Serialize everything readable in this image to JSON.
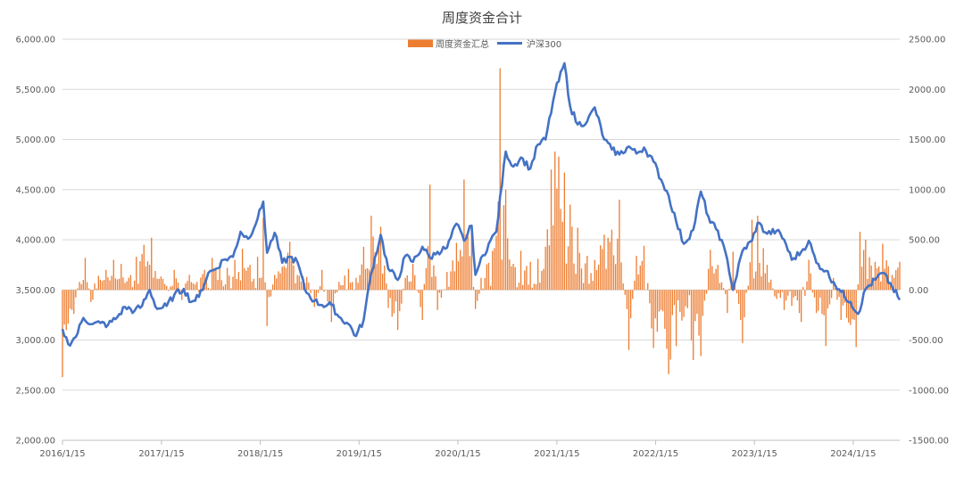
{
  "chart_data": {
    "type": "bar+line",
    "title": "周度资金合计",
    "legend": [
      "周度资金汇总",
      "沪深300"
    ],
    "legend_position": "top",
    "x_tick_labels": [
      "2016/1/15",
      "2017/1/15",
      "2018/1/15",
      "2019/1/15",
      "2020/1/15",
      "2021/1/15",
      "2022/1/15",
      "2023/1/15",
      "2024/1/15"
    ],
    "y_left": {
      "ticks": [
        "2,000.00",
        "2,500.00",
        "3,000.00",
        "3,500.00",
        "4,000.00",
        "4,500.00",
        "5,000.00",
        "5,500.00",
        "6,000.00"
      ],
      "min": 2000,
      "max": 6000
    },
    "y_right": {
      "ticks": [
        "-1500.00",
        "-1000.00",
        "-500.00",
        "0.00",
        "500.00",
        "1000.00",
        "1500.00",
        "2000.00",
        "2500.00"
      ],
      "min": -1500,
      "max": 2500
    },
    "grid": "horizontal",
    "colors": {
      "bar": "#ED7D31",
      "line": "#4472C4",
      "grid": "#D9D9D9",
      "axis": "#BFBFBF"
    },
    "x_range": [
      "2016-01-15",
      "2024-07-05"
    ],
    "line_series": {
      "name": "沪深300",
      "axis": "left",
      "points": [
        [
          "2016-01-15",
          3110
        ],
        [
          "2016-02-05",
          2960
        ],
        [
          "2016-03-04",
          3030
        ],
        [
          "2016-04-01",
          3220
        ],
        [
          "2016-05-06",
          3160
        ],
        [
          "2016-06-03",
          3170
        ],
        [
          "2016-07-01",
          3150
        ],
        [
          "2016-08-05",
          3230
        ],
        [
          "2016-09-02",
          3330
        ],
        [
          "2016-10-07",
          3290
        ],
        [
          "2016-11-04",
          3340
        ],
        [
          "2016-12-02",
          3500
        ],
        [
          "2016-12-30",
          3310
        ],
        [
          "2017-02-03",
          3340
        ],
        [
          "2017-03-03",
          3450
        ],
        [
          "2017-04-07",
          3510
        ],
        [
          "2017-05-05",
          3380
        ],
        [
          "2017-06-02",
          3430
        ],
        [
          "2017-07-07",
          3670
        ],
        [
          "2017-08-04",
          3710
        ],
        [
          "2017-09-01",
          3800
        ],
        [
          "2017-10-06",
          3830
        ],
        [
          "2017-11-03",
          4080
        ],
        [
          "2017-12-01",
          4010
        ],
        [
          "2018-01-05",
          4210
        ],
        [
          "2018-01-26",
          4380
        ],
        [
          "2018-02-09",
          3870
        ],
        [
          "2018-03-09",
          4070
        ],
        [
          "2018-04-06",
          3770
        ],
        [
          "2018-05-04",
          3830
        ],
        [
          "2018-06-01",
          3780
        ],
        [
          "2018-06-29",
          3500
        ],
        [
          "2018-08-03",
          3390
        ],
        [
          "2018-08-31",
          3350
        ],
        [
          "2018-10-05",
          3350
        ],
        [
          "2018-11-02",
          3230
        ],
        [
          "2018-12-07",
          3160
        ],
        [
          "2019-01-04",
          3040
        ],
        [
          "2019-02-01",
          3200
        ],
        [
          "2019-03-01",
          3670
        ],
        [
          "2019-04-05",
          4050
        ],
        [
          "2019-05-03",
          3710
        ],
        [
          "2019-06-07",
          3600
        ],
        [
          "2019-07-05",
          3840
        ],
        [
          "2019-08-02",
          3780
        ],
        [
          "2019-09-06",
          3930
        ],
        [
          "2019-10-04",
          3820
        ],
        [
          "2019-11-01",
          3880
        ],
        [
          "2019-12-06",
          3920
        ],
        [
          "2020-01-10",
          4160
        ],
        [
          "2020-02-07",
          3990
        ],
        [
          "2020-03-06",
          4140
        ],
        [
          "2020-03-20",
          3650
        ],
        [
          "2020-04-03",
          3750
        ],
        [
          "2020-05-08",
          3960
        ],
        [
          "2020-06-05",
          4080
        ],
        [
          "2020-07-10",
          4880
        ],
        [
          "2020-08-07",
          4730
        ],
        [
          "2020-09-04",
          4820
        ],
        [
          "2020-10-09",
          4710
        ],
        [
          "2020-11-06",
          4950
        ],
        [
          "2020-12-04",
          5000
        ],
        [
          "2021-01-08",
          5470
        ],
        [
          "2021-02-12",
          5760
        ],
        [
          "2021-03-05",
          5330
        ],
        [
          "2021-04-02",
          5150
        ],
        [
          "2021-05-07",
          5180
        ],
        [
          "2021-06-04",
          5320
        ],
        [
          "2021-07-09",
          5000
        ],
        [
          "2021-08-06",
          4900
        ],
        [
          "2021-09-03",
          4850
        ],
        [
          "2021-10-08",
          4930
        ],
        [
          "2021-11-05",
          4860
        ],
        [
          "2021-12-03",
          4920
        ],
        [
          "2022-01-07",
          4780
        ],
        [
          "2022-02-04",
          4600
        ],
        [
          "2022-03-04",
          4440
        ],
        [
          "2022-04-01",
          4180
        ],
        [
          "2022-04-29",
          3960
        ],
        [
          "2022-06-03",
          4100
        ],
        [
          "2022-07-01",
          4480
        ],
        [
          "2022-08-05",
          4170
        ],
        [
          "2022-09-02",
          4090
        ],
        [
          "2022-10-07",
          3800
        ],
        [
          "2022-10-28",
          3500
        ],
        [
          "2022-12-02",
          3890
        ],
        [
          "2023-01-06",
          3990
        ],
        [
          "2023-01-27",
          4170
        ],
        [
          "2023-03-03",
          4060
        ],
        [
          "2023-04-07",
          4090
        ],
        [
          "2023-05-05",
          4000
        ],
        [
          "2023-06-02",
          3800
        ],
        [
          "2023-07-07",
          3880
        ],
        [
          "2023-08-04",
          3990
        ],
        [
          "2023-09-01",
          3770
        ],
        [
          "2023-10-06",
          3690
        ],
        [
          "2023-11-03",
          3580
        ],
        [
          "2023-12-01",
          3480
        ],
        [
          "2024-01-05",
          3380
        ],
        [
          "2024-02-02",
          3260
        ],
        [
          "2024-03-01",
          3510
        ],
        [
          "2024-04-05",
          3600
        ],
        [
          "2024-05-03",
          3670
        ],
        [
          "2024-06-07",
          3530
        ],
        [
          "2024-07-05",
          3400
        ]
      ]
    },
    "bar_series": {
      "name": "周度资金汇总",
      "axis": "right",
      "points": [
        [
          "2016-01-15",
          -870
        ],
        [
          "2016-01-29",
          -400
        ],
        [
          "2016-02-26",
          -240
        ],
        [
          "2016-03-18",
          80
        ],
        [
          "2016-04-08",
          320
        ],
        [
          "2016-04-29",
          -120
        ],
        [
          "2016-05-27",
          140
        ],
        [
          "2016-06-24",
          200
        ],
        [
          "2016-07-22",
          300
        ],
        [
          "2016-08-19",
          260
        ],
        [
          "2016-09-16",
          120
        ],
        [
          "2016-10-14",
          330
        ],
        [
          "2016-11-11",
          450
        ],
        [
          "2016-12-09",
          520
        ],
        [
          "2017-01-06",
          110
        ],
        [
          "2017-02-03",
          40
        ],
        [
          "2017-03-03",
          200
        ],
        [
          "2017-03-31",
          -100
        ],
        [
          "2017-04-28",
          150
        ],
        [
          "2017-05-26",
          80
        ],
        [
          "2017-06-23",
          200
        ],
        [
          "2017-07-21",
          320
        ],
        [
          "2017-08-18",
          270
        ],
        [
          "2017-09-15",
          220
        ],
        [
          "2017-10-13",
          300
        ],
        [
          "2017-11-10",
          410
        ],
        [
          "2017-12-08",
          250
        ],
        [
          "2018-01-05",
          330
        ],
        [
          "2018-01-26",
          720
        ],
        [
          "2018-02-09",
          -360
        ],
        [
          "2018-03-09",
          150
        ],
        [
          "2018-04-06",
          230
        ],
        [
          "2018-05-04",
          480
        ],
        [
          "2018-06-01",
          150
        ],
        [
          "2018-07-06",
          130
        ],
        [
          "2018-08-03",
          -170
        ],
        [
          "2018-08-31",
          200
        ],
        [
          "2018-10-05",
          -320
        ],
        [
          "2018-11-02",
          80
        ],
        [
          "2018-12-07",
          210
        ],
        [
          "2019-01-04",
          120
        ],
        [
          "2019-02-01",
          430
        ],
        [
          "2019-03-01",
          740
        ],
        [
          "2019-04-05",
          630
        ],
        [
          "2019-05-03",
          -180
        ],
        [
          "2019-06-07",
          -400
        ],
        [
          "2019-07-05",
          120
        ],
        [
          "2019-08-02",
          260
        ],
        [
          "2019-09-06",
          -300
        ],
        [
          "2019-10-04",
          1050
        ],
        [
          "2019-11-01",
          -200
        ],
        [
          "2019-12-06",
          180
        ],
        [
          "2020-01-10",
          470
        ],
        [
          "2020-02-07",
          1100
        ],
        [
          "2020-03-06",
          580
        ],
        [
          "2020-03-20",
          -190
        ],
        [
          "2020-04-10",
          120
        ],
        [
          "2020-05-08",
          270
        ],
        [
          "2020-06-05",
          540
        ],
        [
          "2020-06-19",
          2210
        ],
        [
          "2020-07-10",
          1000
        ],
        [
          "2020-08-07",
          260
        ],
        [
          "2020-09-04",
          390
        ],
        [
          "2020-10-09",
          280
        ],
        [
          "2020-11-06",
          310
        ],
        [
          "2020-12-04",
          430
        ],
        [
          "2020-12-25",
          1200
        ],
        [
          "2021-01-08",
          1380
        ],
        [
          "2021-01-22",
          1330
        ],
        [
          "2021-02-12",
          1170
        ],
        [
          "2021-03-05",
          850
        ],
        [
          "2021-04-02",
          620
        ],
        [
          "2021-05-07",
          340
        ],
        [
          "2021-06-04",
          300
        ],
        [
          "2021-07-09",
          550
        ],
        [
          "2021-08-06",
          600
        ],
        [
          "2021-09-03",
          900
        ],
        [
          "2021-10-08",
          -600
        ],
        [
          "2021-11-05",
          340
        ],
        [
          "2021-12-03",
          440
        ],
        [
          "2022-01-07",
          -580
        ],
        [
          "2022-02-04",
          -200
        ],
        [
          "2022-03-04",
          -840
        ],
        [
          "2022-04-01",
          -560
        ],
        [
          "2022-04-29",
          -270
        ],
        [
          "2022-06-03",
          -700
        ],
        [
          "2022-07-01",
          -660
        ],
        [
          "2022-08-05",
          400
        ],
        [
          "2022-09-02",
          250
        ],
        [
          "2022-10-07",
          -230
        ],
        [
          "2022-10-28",
          380
        ],
        [
          "2022-12-02",
          -530
        ],
        [
          "2023-01-06",
          700
        ],
        [
          "2023-01-27",
          740
        ],
        [
          "2023-03-03",
          250
        ],
        [
          "2023-04-07",
          -90
        ],
        [
          "2023-05-05",
          -200
        ],
        [
          "2023-06-02",
          -160
        ],
        [
          "2023-07-07",
          -320
        ],
        [
          "2023-08-04",
          300
        ],
        [
          "2023-09-01",
          -230
        ],
        [
          "2023-10-06",
          -560
        ],
        [
          "2023-11-03",
          120
        ],
        [
          "2023-12-01",
          -300
        ],
        [
          "2024-01-05",
          -350
        ],
        [
          "2024-01-26",
          -570
        ],
        [
          "2024-02-09",
          580
        ],
        [
          "2024-03-01",
          500
        ],
        [
          "2024-04-05",
          280
        ],
        [
          "2024-05-03",
          460
        ],
        [
          "2024-06-07",
          150
        ],
        [
          "2024-07-05",
          280
        ]
      ]
    }
  }
}
